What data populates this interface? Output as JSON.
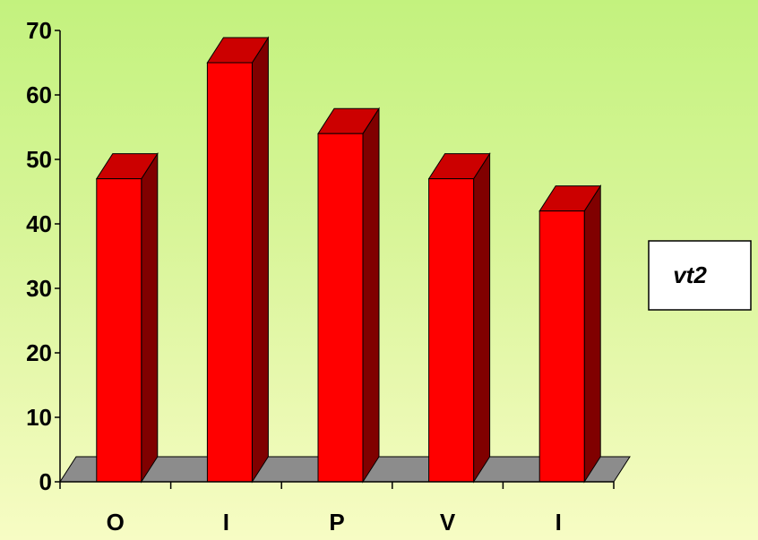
{
  "chart_data": {
    "type": "bar",
    "categories": [
      "O",
      "I",
      "P",
      "V",
      "I"
    ],
    "series": [
      {
        "name": "vt2",
        "values": [
          47,
          65,
          54,
          47,
          42
        ]
      }
    ],
    "ylim": [
      0,
      70
    ],
    "yticks": [
      0,
      10,
      20,
      30,
      40,
      50,
      60,
      70
    ],
    "ytick_labels": [
      "0",
      "10",
      "20",
      "30",
      "40",
      "50",
      "60",
      "70"
    ],
    "title": "",
    "xlabel": "",
    "ylabel": "",
    "legend": {
      "position": "right",
      "label": "vt2"
    },
    "grid": false,
    "style": "3d",
    "colors": {
      "bar_front": "#ff0000",
      "bar_top": "#cc0000",
      "bar_side": "#800000",
      "floor": "#8c8c8c",
      "outline": "#000000"
    }
  }
}
